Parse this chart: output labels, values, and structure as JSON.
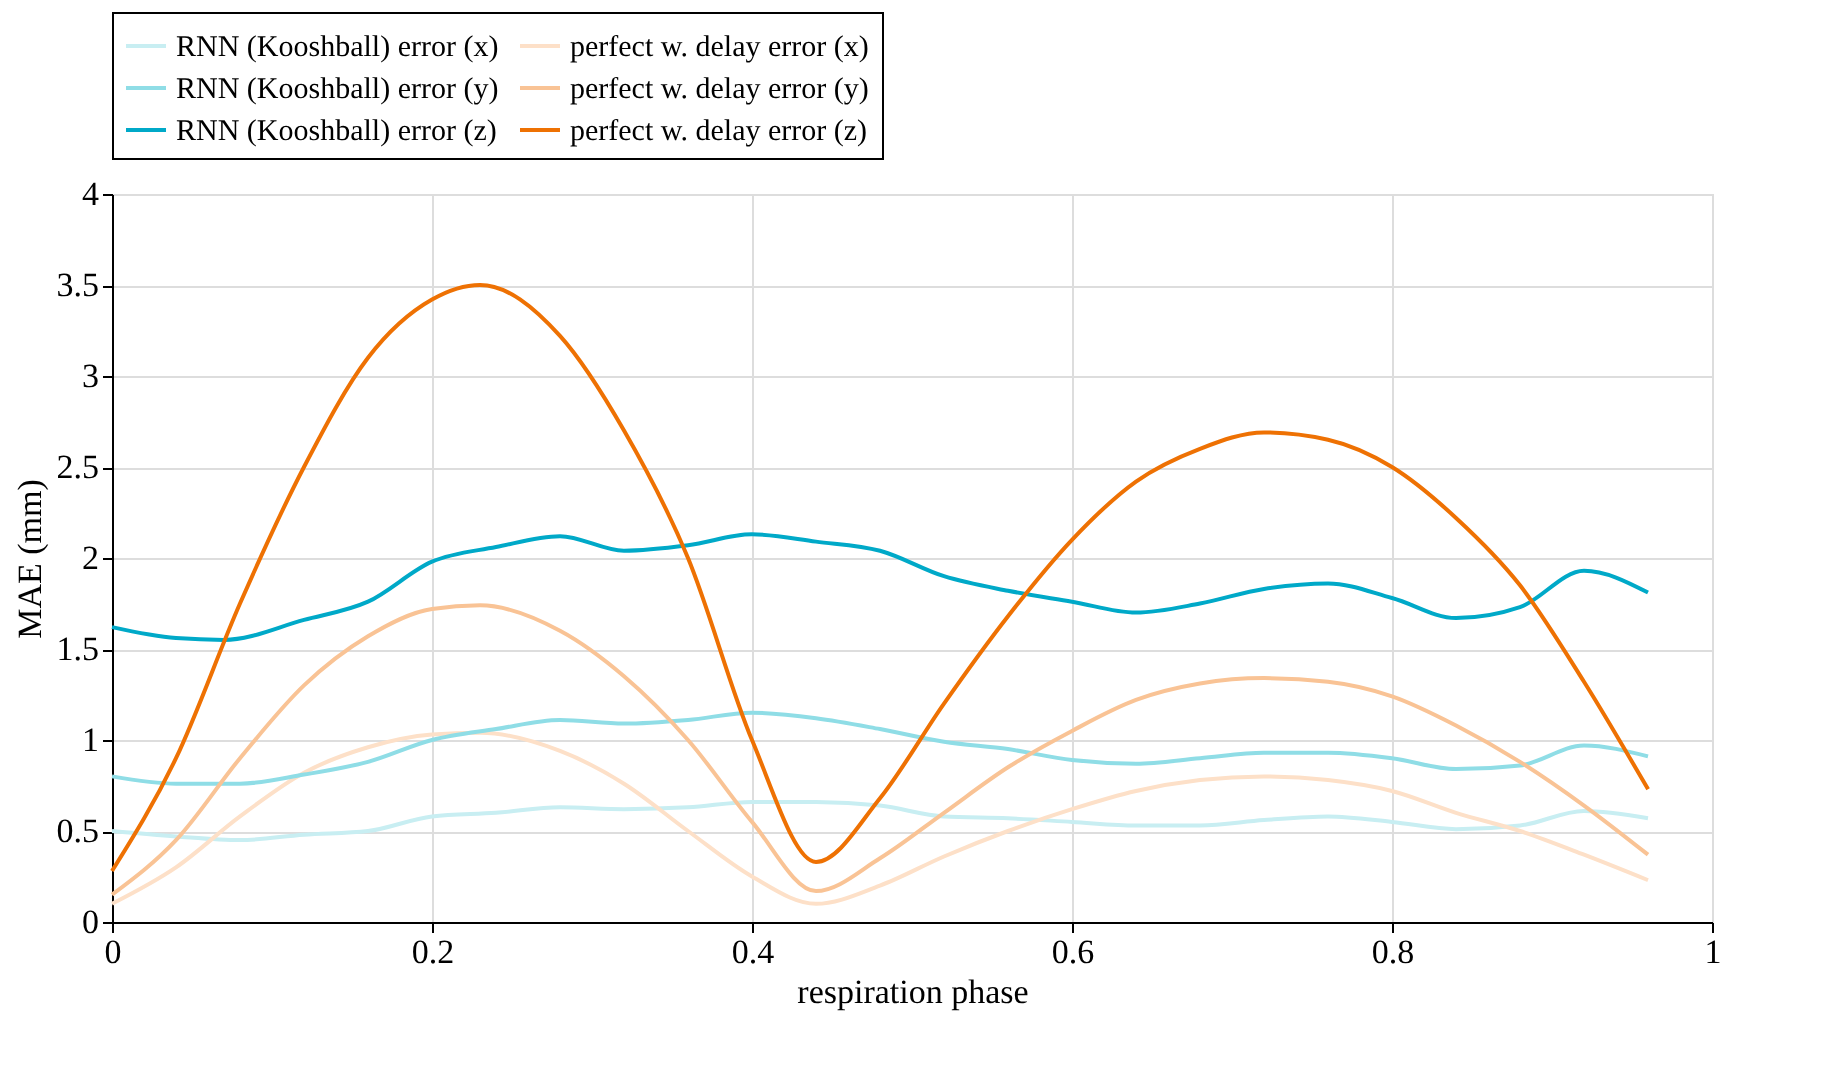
{
  "chart_data": {
    "type": "line",
    "xlabel": "respiration phase",
    "ylabel": "MAE (mm)",
    "xlim": [
      0,
      1
    ],
    "ylim": [
      0,
      4
    ],
    "xticks": [
      0,
      0.2,
      0.4,
      0.6,
      0.8,
      1
    ],
    "yticks": [
      0,
      0.5,
      1,
      1.5,
      2,
      2.5,
      3,
      3.5,
      4
    ],
    "grid": true,
    "legend": "top",
    "line_style": "solid",
    "marker": "none",
    "series": [
      {
        "name": "RNN (Kooshball) error (x)",
        "color": "#c8eef2",
        "x": [
          0,
          0.04,
          0.08,
          0.12,
          0.16,
          0.2,
          0.24,
          0.28,
          0.32,
          0.36,
          0.4,
          0.44,
          0.48,
          0.52,
          0.56,
          0.6,
          0.64,
          0.68,
          0.72,
          0.76,
          0.8,
          0.84,
          0.88,
          0.92,
          0.96
        ],
        "values": [
          0.5,
          0.47,
          0.45,
          0.48,
          0.5,
          0.58,
          0.6,
          0.63,
          0.62,
          0.63,
          0.66,
          0.66,
          0.64,
          0.58,
          0.57,
          0.55,
          0.53,
          0.53,
          0.56,
          0.58,
          0.55,
          0.51,
          0.53,
          0.61,
          0.57
        ]
      },
      {
        "name": "perfect w. delay error (x)",
        "color": "#fde0c8",
        "x": [
          0,
          0.04,
          0.08,
          0.12,
          0.16,
          0.2,
          0.23,
          0.28,
          0.32,
          0.36,
          0.4,
          0.44,
          0.48,
          0.52,
          0.56,
          0.6,
          0.64,
          0.68,
          0.72,
          0.76,
          0.8,
          0.84,
          0.88,
          0.92,
          0.96
        ],
        "values": [
          0.1,
          0.3,
          0.58,
          0.82,
          0.96,
          1.03,
          1.04,
          0.94,
          0.76,
          0.5,
          0.25,
          0.1,
          0.2,
          0.36,
          0.5,
          0.62,
          0.72,
          0.78,
          0.8,
          0.78,
          0.72,
          0.6,
          0.5,
          0.37,
          0.23
        ]
      },
      {
        "name": "RNN (Kooshball) error (y)",
        "color": "#8fdde6",
        "x": [
          0,
          0.04,
          0.08,
          0.12,
          0.16,
          0.2,
          0.24,
          0.28,
          0.32,
          0.36,
          0.4,
          0.44,
          0.48,
          0.52,
          0.56,
          0.6,
          0.64,
          0.68,
          0.72,
          0.76,
          0.8,
          0.84,
          0.88,
          0.92,
          0.96
        ],
        "values": [
          0.8,
          0.76,
          0.76,
          0.81,
          0.88,
          1.0,
          1.06,
          1.11,
          1.09,
          1.11,
          1.15,
          1.12,
          1.06,
          0.99,
          0.95,
          0.89,
          0.87,
          0.9,
          0.93,
          0.93,
          0.9,
          0.84,
          0.86,
          0.97,
          0.91
        ]
      },
      {
        "name": "perfect w. delay error (y)",
        "color": "#f9c395",
        "x": [
          0,
          0.04,
          0.08,
          0.12,
          0.16,
          0.2,
          0.23,
          0.28,
          0.32,
          0.36,
          0.4,
          0.44,
          0.48,
          0.52,
          0.56,
          0.6,
          0.64,
          0.68,
          0.72,
          0.76,
          0.8,
          0.84,
          0.88,
          0.92,
          0.96
        ],
        "values": [
          0.15,
          0.45,
          0.9,
          1.3,
          1.57,
          1.72,
          1.74,
          1.6,
          1.35,
          1.0,
          0.55,
          0.17,
          0.35,
          0.6,
          0.85,
          1.05,
          1.22,
          1.31,
          1.34,
          1.32,
          1.24,
          1.08,
          0.88,
          0.64,
          0.37
        ]
      },
      {
        "name": "RNN (Kooshball) error (z)",
        "color": "#00a9c8",
        "x": [
          0,
          0.04,
          0.07,
          0.12,
          0.16,
          0.2,
          0.24,
          0.28,
          0.32,
          0.36,
          0.4,
          0.44,
          0.48,
          0.52,
          0.56,
          0.6,
          0.64,
          0.68,
          0.72,
          0.76,
          0.8,
          0.84,
          0.88,
          0.92,
          0.96
        ],
        "values": [
          1.62,
          1.56,
          1.55,
          1.66,
          1.76,
          1.98,
          2.06,
          2.12,
          2.04,
          2.07,
          2.13,
          2.09,
          2.04,
          1.9,
          1.82,
          1.76,
          1.7,
          1.75,
          1.83,
          1.86,
          1.78,
          1.67,
          1.73,
          1.93,
          1.81
        ]
      },
      {
        "name": "perfect w. delay error (z)",
        "color": "#ee7103",
        "x": [
          0,
          0.04,
          0.08,
          0.12,
          0.16,
          0.2,
          0.23,
          0.28,
          0.32,
          0.36,
          0.4,
          0.44,
          0.48,
          0.52,
          0.56,
          0.6,
          0.64,
          0.68,
          0.72,
          0.76,
          0.8,
          0.84,
          0.88,
          0.92,
          0.96
        ],
        "values": [
          0.28,
          0.9,
          1.75,
          2.5,
          3.1,
          3.42,
          3.5,
          3.22,
          2.7,
          2.0,
          1.0,
          0.33,
          0.68,
          1.2,
          1.68,
          2.1,
          2.42,
          2.6,
          2.69,
          2.65,
          2.5,
          2.22,
          1.85,
          1.32,
          0.73
        ]
      }
    ]
  }
}
